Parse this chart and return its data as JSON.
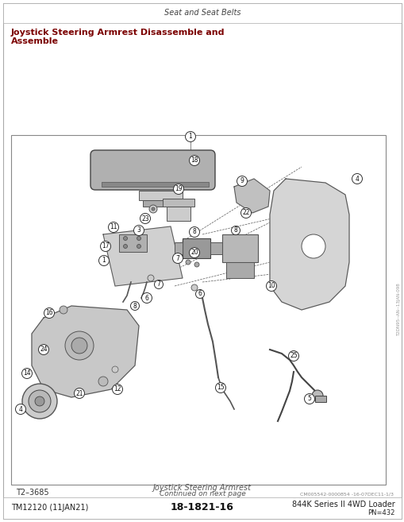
{
  "header_text": "Seat and Seat Belts",
  "title_line1": "Joystick Steering Armrest Disassemble and",
  "title_line2": "Assemble",
  "title_color": "#7B0000",
  "footer_left": "TM12120 (11JAN21)",
  "footer_center": "18-1821-16",
  "footer_right": "844K Series II 4WD Loader",
  "footer_pn": "PN=432",
  "caption_text": "Joystick Steering Armrest",
  "continued_text": "Continued on next page",
  "figure_id": "T2–3685",
  "diagram_bg": "#ffffff",
  "border_color": "#999999",
  "page_bg": "#ffffff",
  "watermark_text": "T2DN95--AN--13JAN-098",
  "copyright_text": "CM005542-0000854 -16-07DEC11-1/3",
  "fig_width": 5.1,
  "fig_height": 6.57,
  "dpi": 100
}
